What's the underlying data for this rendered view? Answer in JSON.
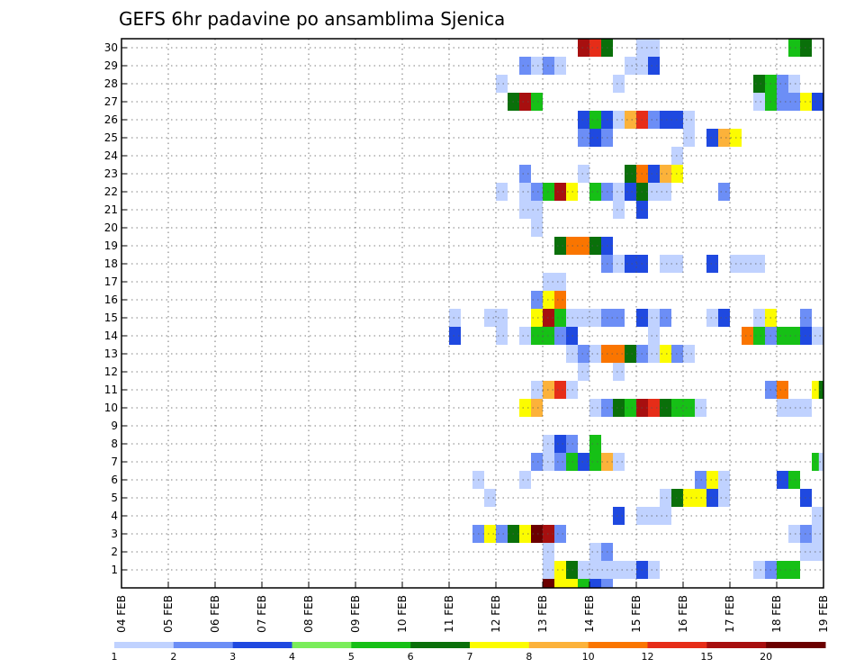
{
  "chart_data": {
    "type": "heatmap",
    "title": "GEFS 6hr padavine po ansamblima Sjenica",
    "xlabel": "",
    "ylabel": "",
    "x_tick_labels": [
      "04 FEB",
      "05 FEB",
      "06 FEB",
      "07 FEB",
      "08 FEB",
      "09 FEB",
      "10 FEB",
      "11 FEB",
      "12 FEB",
      "13 FEB",
      "14 FEB",
      "15 FEB",
      "16 FEB",
      "17 FEB",
      "18 FEB",
      "19 FEB"
    ],
    "xlim_days": [
      0,
      15
    ],
    "y_tick_labels": [
      "1",
      "2",
      "3",
      "4",
      "5",
      "6",
      "7",
      "8",
      "9",
      "10",
      "11",
      "12",
      "13",
      "14",
      "15",
      "16",
      "17",
      "18",
      "19",
      "20",
      "21",
      "22",
      "23",
      "24",
      "25",
      "26",
      "27",
      "28",
      "29",
      "30"
    ],
    "ylim": [
      0,
      30
    ],
    "grid": true,
    "colorbar": {
      "placement": "bottom",
      "bounds": [
        "1",
        "2",
        "3",
        "4",
        "5",
        "6",
        "7",
        "8",
        "10",
        "12",
        "15",
        "20"
      ],
      "colors": [
        "#c0d2ff",
        "#6c8ef6",
        "#1f49e0",
        "#7aed5a",
        "#16c016",
        "#0a700a",
        "#fcfc00",
        "#fcb23a",
        "#fa7500",
        "#e62d18",
        "#a70f0f",
        "#6b0000"
      ]
    },
    "cells_description": "Each cell = [day_offset_from_04_FEB, member, color_class_index]; 0.25 day per 6h step",
    "cells": [
      [
        9.0,
        0,
        11
      ],
      [
        9.25,
        0,
        6
      ],
      [
        9.5,
        0,
        6
      ],
      [
        9.75,
        0,
        4
      ],
      [
        10.0,
        0,
        2
      ],
      [
        10.25,
        0,
        1
      ],
      [
        9.0,
        1,
        0
      ],
      [
        9.25,
        1,
        6
      ],
      [
        9.5,
        1,
        5
      ],
      [
        9.75,
        1,
        0
      ],
      [
        10.0,
        1,
        0
      ],
      [
        10.25,
        1,
        0
      ],
      [
        10.5,
        1,
        0
      ],
      [
        10.75,
        1,
        0
      ],
      [
        11.0,
        1,
        2
      ],
      [
        11.25,
        1,
        0
      ],
      [
        13.5,
        1,
        0
      ],
      [
        13.75,
        1,
        1
      ],
      [
        14.0,
        1,
        4
      ],
      [
        14.25,
        1,
        4
      ],
      [
        9.0,
        2,
        0
      ],
      [
        10.0,
        2,
        0
      ],
      [
        10.25,
        2,
        1
      ],
      [
        14.5,
        2,
        0
      ],
      [
        14.75,
        2,
        0
      ],
      [
        7.5,
        3,
        1
      ],
      [
        7.75,
        3,
        6
      ],
      [
        8.0,
        3,
        1
      ],
      [
        8.25,
        3,
        5
      ],
      [
        8.5,
        3,
        6
      ],
      [
        8.75,
        3,
        11
      ],
      [
        9.0,
        3,
        10
      ],
      [
        9.25,
        3,
        1
      ],
      [
        14.25,
        3,
        0
      ],
      [
        14.5,
        3,
        1
      ],
      [
        14.75,
        3,
        0
      ],
      [
        10.5,
        4,
        2
      ],
      [
        11.0,
        4,
        0
      ],
      [
        11.25,
        4,
        0
      ],
      [
        11.5,
        4,
        0
      ],
      [
        14.75,
        4,
        0
      ],
      [
        7.75,
        5,
        0
      ],
      [
        11.5,
        5,
        0
      ],
      [
        11.75,
        5,
        5
      ],
      [
        12.0,
        5,
        6
      ],
      [
        12.25,
        5,
        6
      ],
      [
        12.5,
        5,
        2
      ],
      [
        12.75,
        5,
        0
      ],
      [
        14.5,
        5,
        2
      ],
      [
        7.5,
        6,
        0
      ],
      [
        8.5,
        6,
        0
      ],
      [
        12.25,
        6,
        1
      ],
      [
        12.5,
        6,
        6
      ],
      [
        12.75,
        6,
        0
      ],
      [
        14.0,
        6,
        2
      ],
      [
        14.25,
        6,
        4
      ],
      [
        8.75,
        7,
        1
      ],
      [
        9.0,
        7,
        0
      ],
      [
        9.25,
        7,
        1
      ],
      [
        9.5,
        7,
        4
      ],
      [
        9.75,
        7,
        2
      ],
      [
        10.0,
        7,
        4
      ],
      [
        10.25,
        7,
        7
      ],
      [
        10.5,
        7,
        0
      ],
      [
        14.75,
        7,
        4
      ],
      [
        14.9,
        7,
        0
      ],
      [
        9.0,
        8,
        0
      ],
      [
        9.25,
        8,
        2
      ],
      [
        9.5,
        8,
        1
      ],
      [
        10.0,
        8,
        4
      ],
      [
        8.5,
        10,
        6
      ],
      [
        8.75,
        10,
        7
      ],
      [
        10.0,
        10,
        0
      ],
      [
        10.25,
        10,
        1
      ],
      [
        10.5,
        10,
        5
      ],
      [
        10.75,
        10,
        4
      ],
      [
        11.0,
        10,
        10
      ],
      [
        11.25,
        10,
        9
      ],
      [
        11.5,
        10,
        5
      ],
      [
        11.75,
        10,
        4
      ],
      [
        12.0,
        10,
        4
      ],
      [
        12.25,
        10,
        0
      ],
      [
        14.0,
        10,
        0
      ],
      [
        14.25,
        10,
        0
      ],
      [
        14.5,
        10,
        0
      ],
      [
        8.75,
        11,
        0
      ],
      [
        9.0,
        11,
        7
      ],
      [
        9.25,
        11,
        9
      ],
      [
        9.5,
        11,
        0
      ],
      [
        13.75,
        11,
        1
      ],
      [
        14.0,
        11,
        8
      ],
      [
        14.75,
        11,
        6
      ],
      [
        14.9,
        11,
        5
      ],
      [
        9.75,
        12,
        0
      ],
      [
        10.5,
        12,
        0
      ],
      [
        9.5,
        13,
        0
      ],
      [
        9.75,
        13,
        1
      ],
      [
        10.0,
        13,
        0
      ],
      [
        10.25,
        13,
        8
      ],
      [
        10.5,
        13,
        8
      ],
      [
        10.75,
        13,
        5
      ],
      [
        11.0,
        13,
        1
      ],
      [
        11.25,
        13,
        0
      ],
      [
        11.5,
        13,
        6
      ],
      [
        11.75,
        13,
        1
      ],
      [
        12.0,
        13,
        0
      ],
      [
        7.0,
        14,
        2
      ],
      [
        8.0,
        14,
        0
      ],
      [
        8.5,
        14,
        0
      ],
      [
        8.75,
        14,
        4
      ],
      [
        9.0,
        14,
        4
      ],
      [
        9.25,
        14,
        1
      ],
      [
        9.5,
        14,
        2
      ],
      [
        11.25,
        14,
        0
      ],
      [
        13.25,
        14,
        8
      ],
      [
        13.5,
        14,
        4
      ],
      [
        13.75,
        14,
        1
      ],
      [
        14.0,
        14,
        4
      ],
      [
        14.25,
        14,
        4
      ],
      [
        14.5,
        14,
        2
      ],
      [
        14.75,
        14,
        0
      ],
      [
        7.0,
        15,
        0
      ],
      [
        7.75,
        15,
        0
      ],
      [
        8.0,
        15,
        0
      ],
      [
        8.75,
        15,
        6
      ],
      [
        9.0,
        15,
        10
      ],
      [
        9.25,
        15,
        4
      ],
      [
        9.5,
        15,
        0
      ],
      [
        9.75,
        15,
        0
      ],
      [
        10.0,
        15,
        0
      ],
      [
        10.25,
        15,
        1
      ],
      [
        10.5,
        15,
        1
      ],
      [
        11.0,
        15,
        2
      ],
      [
        11.25,
        15,
        0
      ],
      [
        11.5,
        15,
        1
      ],
      [
        12.5,
        15,
        0
      ],
      [
        12.75,
        15,
        2
      ],
      [
        13.5,
        15,
        0
      ],
      [
        13.75,
        15,
        6
      ],
      [
        14.5,
        15,
        1
      ],
      [
        8.75,
        16,
        1
      ],
      [
        9.0,
        16,
        6
      ],
      [
        9.25,
        16,
        8
      ],
      [
        9.0,
        17,
        0
      ],
      [
        9.25,
        17,
        0
      ],
      [
        10.25,
        18,
        1
      ],
      [
        10.5,
        18,
        0
      ],
      [
        10.75,
        18,
        2
      ],
      [
        11.0,
        18,
        2
      ],
      [
        11.5,
        18,
        0
      ],
      [
        11.75,
        18,
        0
      ],
      [
        12.5,
        18,
        2
      ],
      [
        13.0,
        18,
        0
      ],
      [
        13.25,
        18,
        0
      ],
      [
        13.5,
        18,
        0
      ],
      [
        9.25,
        19,
        5
      ],
      [
        9.5,
        19,
        8
      ],
      [
        9.75,
        19,
        8
      ],
      [
        10.0,
        19,
        5
      ],
      [
        10.25,
        19,
        2
      ],
      [
        8.75,
        20,
        0
      ],
      [
        8.5,
        21,
        0
      ],
      [
        8.75,
        21,
        0
      ],
      [
        10.5,
        21,
        0
      ],
      [
        11.0,
        21,
        2
      ],
      [
        8.0,
        22,
        0
      ],
      [
        8.5,
        22,
        0
      ],
      [
        8.75,
        22,
        1
      ],
      [
        9.0,
        22,
        4
      ],
      [
        9.25,
        22,
        10
      ],
      [
        9.5,
        22,
        6
      ],
      [
        10.0,
        22,
        4
      ],
      [
        10.25,
        22,
        1
      ],
      [
        10.5,
        22,
        0
      ],
      [
        10.75,
        22,
        2
      ],
      [
        11.0,
        22,
        5
      ],
      [
        11.25,
        22,
        0
      ],
      [
        11.5,
        22,
        0
      ],
      [
        12.75,
        22,
        1
      ],
      [
        8.5,
        23,
        1
      ],
      [
        9.75,
        23,
        0
      ],
      [
        10.75,
        23,
        5
      ],
      [
        11.0,
        23,
        8
      ],
      [
        11.25,
        23,
        2
      ],
      [
        11.5,
        23,
        7
      ],
      [
        11.75,
        23,
        6
      ],
      [
        11.75,
        24,
        0
      ],
      [
        9.75,
        25,
        1
      ],
      [
        10.0,
        25,
        2
      ],
      [
        10.25,
        25,
        1
      ],
      [
        12.0,
        25,
        0
      ],
      [
        12.5,
        25,
        2
      ],
      [
        12.75,
        25,
        7
      ],
      [
        13.0,
        25,
        6
      ],
      [
        9.75,
        26,
        2
      ],
      [
        10.0,
        26,
        4
      ],
      [
        10.25,
        26,
        2
      ],
      [
        10.5,
        26,
        0
      ],
      [
        10.75,
        26,
        7
      ],
      [
        11.0,
        26,
        9
      ],
      [
        11.25,
        26,
        1
      ],
      [
        11.5,
        26,
        2
      ],
      [
        11.75,
        26,
        2
      ],
      [
        12.0,
        26,
        0
      ],
      [
        8.25,
        27,
        5
      ],
      [
        8.5,
        27,
        10
      ],
      [
        8.75,
        27,
        4
      ],
      [
        13.5,
        27,
        0
      ],
      [
        13.75,
        27,
        4
      ],
      [
        14.0,
        27,
        1
      ],
      [
        14.25,
        27,
        1
      ],
      [
        14.5,
        27,
        6
      ],
      [
        14.75,
        27,
        2
      ],
      [
        8.0,
        28,
        0
      ],
      [
        10.5,
        28,
        0
      ],
      [
        13.5,
        28,
        5
      ],
      [
        13.75,
        28,
        4
      ],
      [
        14.0,
        28,
        1
      ],
      [
        14.25,
        28,
        0
      ],
      [
        8.5,
        29,
        1
      ],
      [
        8.75,
        29,
        0
      ],
      [
        9.0,
        29,
        1
      ],
      [
        9.25,
        29,
        0
      ],
      [
        10.75,
        29,
        0
      ],
      [
        11.0,
        29,
        0
      ],
      [
        11.25,
        29,
        2
      ],
      [
        9.75,
        30,
        10
      ],
      [
        10.0,
        30,
        9
      ],
      [
        10.25,
        30,
        5
      ],
      [
        11.0,
        30,
        0
      ],
      [
        11.25,
        30,
        0
      ],
      [
        14.25,
        30,
        4
      ],
      [
        14.5,
        30,
        5
      ]
    ]
  }
}
